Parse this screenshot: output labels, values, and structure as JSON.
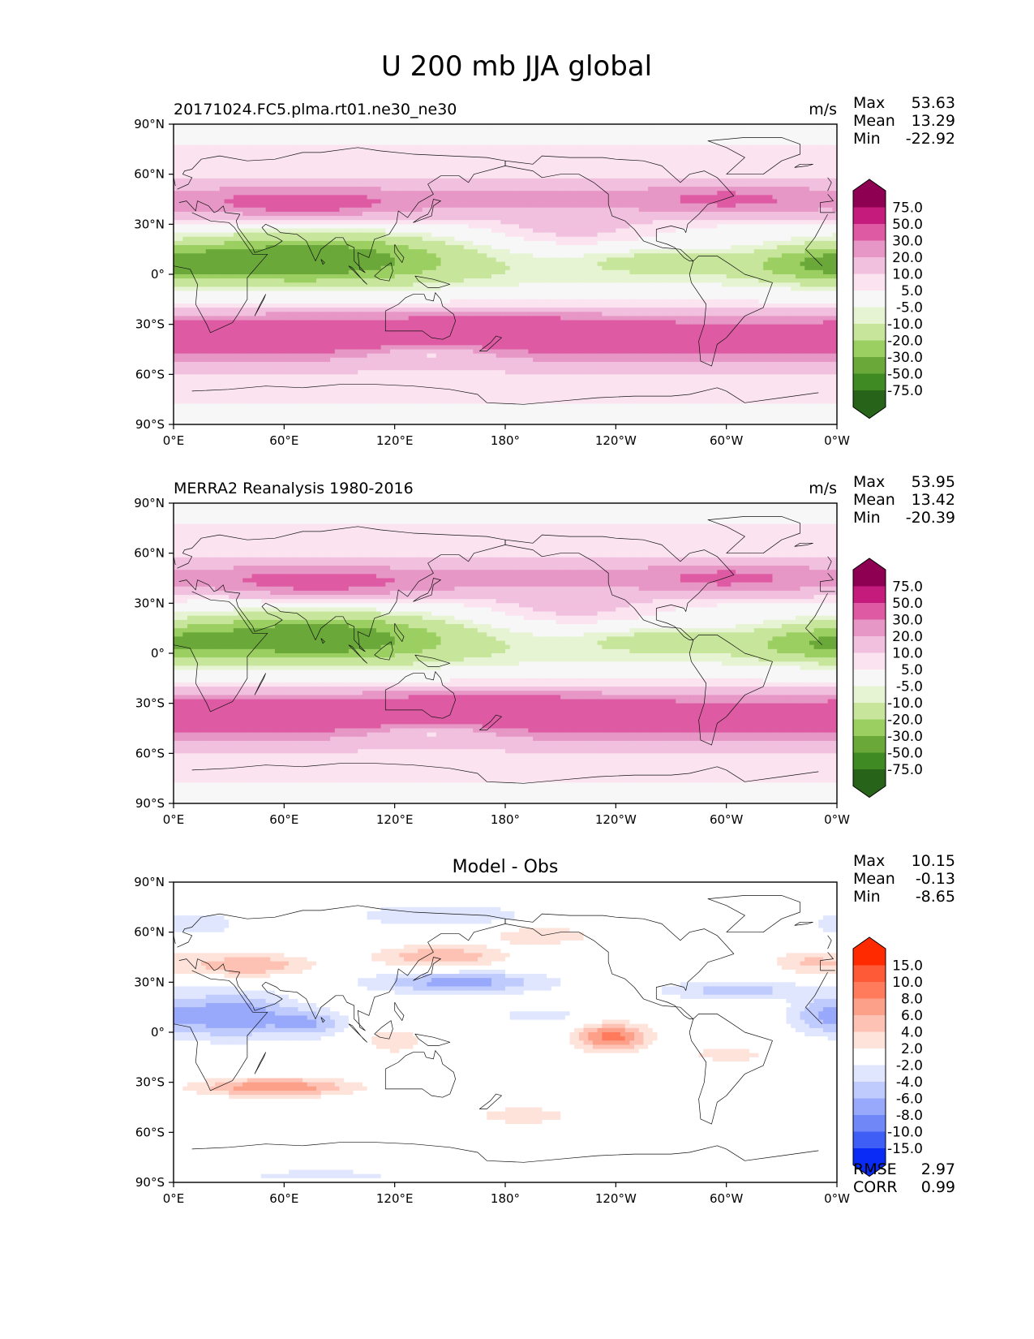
{
  "chart_data": {
    "type": "contour_map",
    "title": "U 200 mb JJA global",
    "x_tick_labels": [
      "0°E",
      "60°E",
      "120°E",
      "180°",
      "120°W",
      "60°W",
      "0°W"
    ],
    "y_tick_labels": [
      "90°N",
      "60°N",
      "30°N",
      "0°",
      "30°S",
      "60°S",
      "90°S"
    ],
    "xlim": [
      0,
      360
    ],
    "ylim": [
      -90,
      90
    ],
    "panels": [
      {
        "id": "model",
        "left_title": "20171024.FC5.plma.rt01.ne30_ne30",
        "center_title": "",
        "units": "m/s",
        "stats": [
          {
            "label": "Max",
            "value": "53.63"
          },
          {
            "label": "Mean",
            "value": "13.29"
          },
          {
            "label": "Min",
            "value": "-22.92"
          }
        ],
        "colorbar": {
          "labels": [
            "75.0",
            "50.0",
            "30.0",
            "20.0",
            "10.0",
            "5.0",
            "-5.0",
            "-10.0",
            "-20.0",
            "-30.0",
            "-50.0",
            "-75.0"
          ],
          "colors": [
            "#8e0152",
            "#c51b7d",
            "#de5ba4",
            "#e797c5",
            "#f2c0df",
            "#fbe3f0",
            "#f7f7f7",
            "#e6f4d4",
            "#c7e69b",
            "#9ccf62",
            "#6aa83a",
            "#3f8a22",
            "#276419"
          ],
          "extend": "both"
        },
        "field": "model_u200"
      },
      {
        "id": "obs",
        "left_title": "MERRA2 Reanalysis 1980-2016",
        "center_title": "",
        "units": "m/s",
        "stats": [
          {
            "label": "Max",
            "value": "53.95"
          },
          {
            "label": "Mean",
            "value": "13.42"
          },
          {
            "label": "Min",
            "value": "-20.39"
          }
        ],
        "colorbar": {
          "labels": [
            "75.0",
            "50.0",
            "30.0",
            "20.0",
            "10.0",
            "5.0",
            "-5.0",
            "-10.0",
            "-20.0",
            "-30.0",
            "-50.0",
            "-75.0"
          ],
          "colors": [
            "#8e0152",
            "#c51b7d",
            "#de5ba4",
            "#e797c5",
            "#f2c0df",
            "#fbe3f0",
            "#f7f7f7",
            "#e6f4d4",
            "#c7e69b",
            "#9ccf62",
            "#6aa83a",
            "#3f8a22",
            "#276419"
          ],
          "extend": "both"
        },
        "field": "obs_u200"
      },
      {
        "id": "diff",
        "left_title": "",
        "center_title": "Model - Obs",
        "units": "",
        "stats": [
          {
            "label": "Max",
            "value": "10.15"
          },
          {
            "label": "Mean",
            "value": "-0.13"
          },
          {
            "label": "Min",
            "value": "-8.65"
          }
        ],
        "bottom_stats": [
          {
            "label": "RMSE",
            "value": "2.97"
          },
          {
            "label": "CORR",
            "value": "0.99"
          }
        ],
        "colorbar": {
          "labels": [
            "15.0",
            "10.0",
            "8.0",
            "6.0",
            "4.0",
            "2.0",
            "-2.0",
            "-4.0",
            "-6.0",
            "-8.0",
            "-10.0",
            "-15.0"
          ],
          "colors": [
            "#ff2a00",
            "#ff5a38",
            "#ff7b5c",
            "#fca08a",
            "#fdc2b3",
            "#fee3db",
            "#ffffff",
            "#dfe6fd",
            "#bfcafd",
            "#98a8fb",
            "#7087f8",
            "#3f5ef6",
            "#0a2bf5"
          ],
          "extend": "both"
        },
        "field": "difference"
      }
    ]
  }
}
